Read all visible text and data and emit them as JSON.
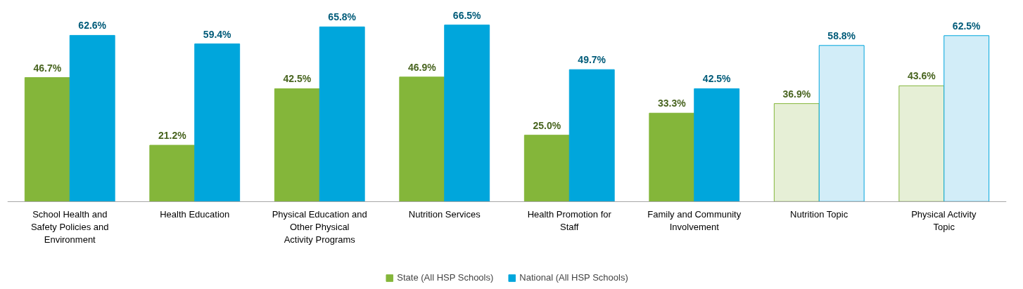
{
  "chart_data": {
    "type": "bar",
    "categories": [
      "School Health and Safety Policies and Environment",
      "Health Education",
      "Physical Education and Other Physical Activity Programs",
      "Nutrition Services",
      "Health Promotion for Staff",
      "Family and Community Involvement",
      "Nutrition Topic",
      "Physical Activity Topic"
    ],
    "series": [
      {
        "name": "State (All HSP Schools)",
        "color": "#84b63a",
        "colors": [
          "#84b63a",
          "#84b63a",
          "#84b63a",
          "#84b63a",
          "#84b63a",
          "#84b63a",
          "#e6efd6",
          "#e6efd6"
        ],
        "values": [
          46.7,
          21.2,
          42.5,
          46.9,
          25.0,
          33.3,
          36.9,
          43.6
        ],
        "value_labels": [
          "46.7%",
          "21.2%",
          "42.5%",
          "46.9%",
          "25.0%",
          "33.3%",
          "36.9%",
          "43.6%"
        ]
      },
      {
        "name": "National (All HSP Schools)",
        "color": "#00a6dc",
        "colors": [
          "#00a6dc",
          "#00a6dc",
          "#00a6dc",
          "#00a6dc",
          "#00a6dc",
          "#00a6dc",
          "#d2edf8",
          "#d2edf8"
        ],
        "values": [
          62.6,
          59.4,
          65.8,
          66.5,
          49.7,
          42.5,
          58.8,
          62.5
        ],
        "value_labels": [
          "62.6%",
          "59.4%",
          "65.8%",
          "66.5%",
          "49.7%",
          "42.5%",
          "58.8%",
          "62.5%"
        ]
      }
    ],
    "legend": "bottom"
  }
}
